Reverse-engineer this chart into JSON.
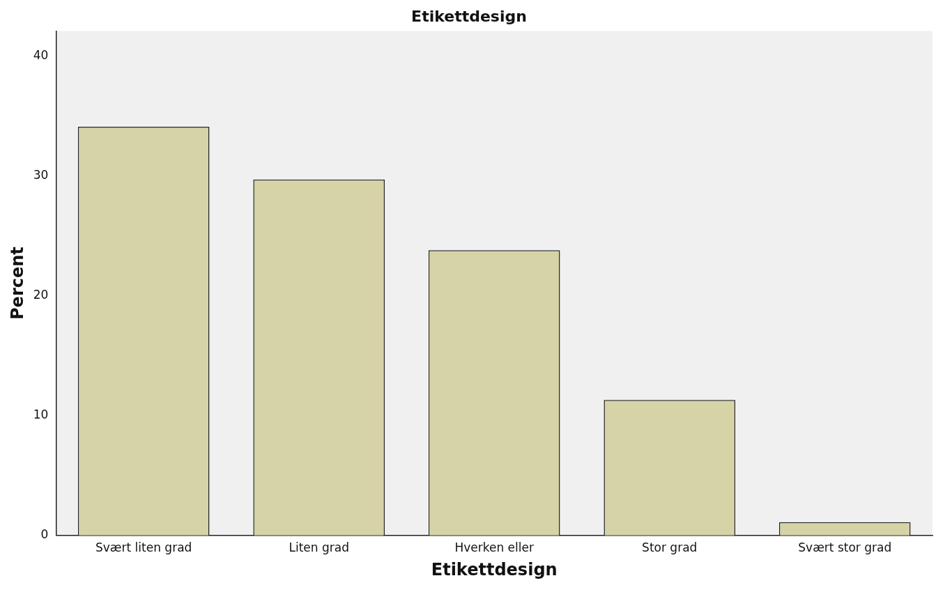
{
  "chart_data": {
    "type": "bar",
    "title": "Etikettdesign",
    "categories": [
      "Svært liten grad",
      "Liten grad",
      "Hverken eller",
      "Stor grad",
      "Svært stor grad"
    ],
    "values": [
      34.1,
      29.7,
      23.8,
      11.3,
      1.1
    ],
    "color": "#d6d3a7",
    "xlabel": "Etikettdesign",
    "ylabel": "Percent",
    "ylim": [
      0,
      42.1
    ],
    "yticks": [
      0,
      10,
      20,
      30,
      40
    ],
    "grid": false,
    "legend": false
  }
}
